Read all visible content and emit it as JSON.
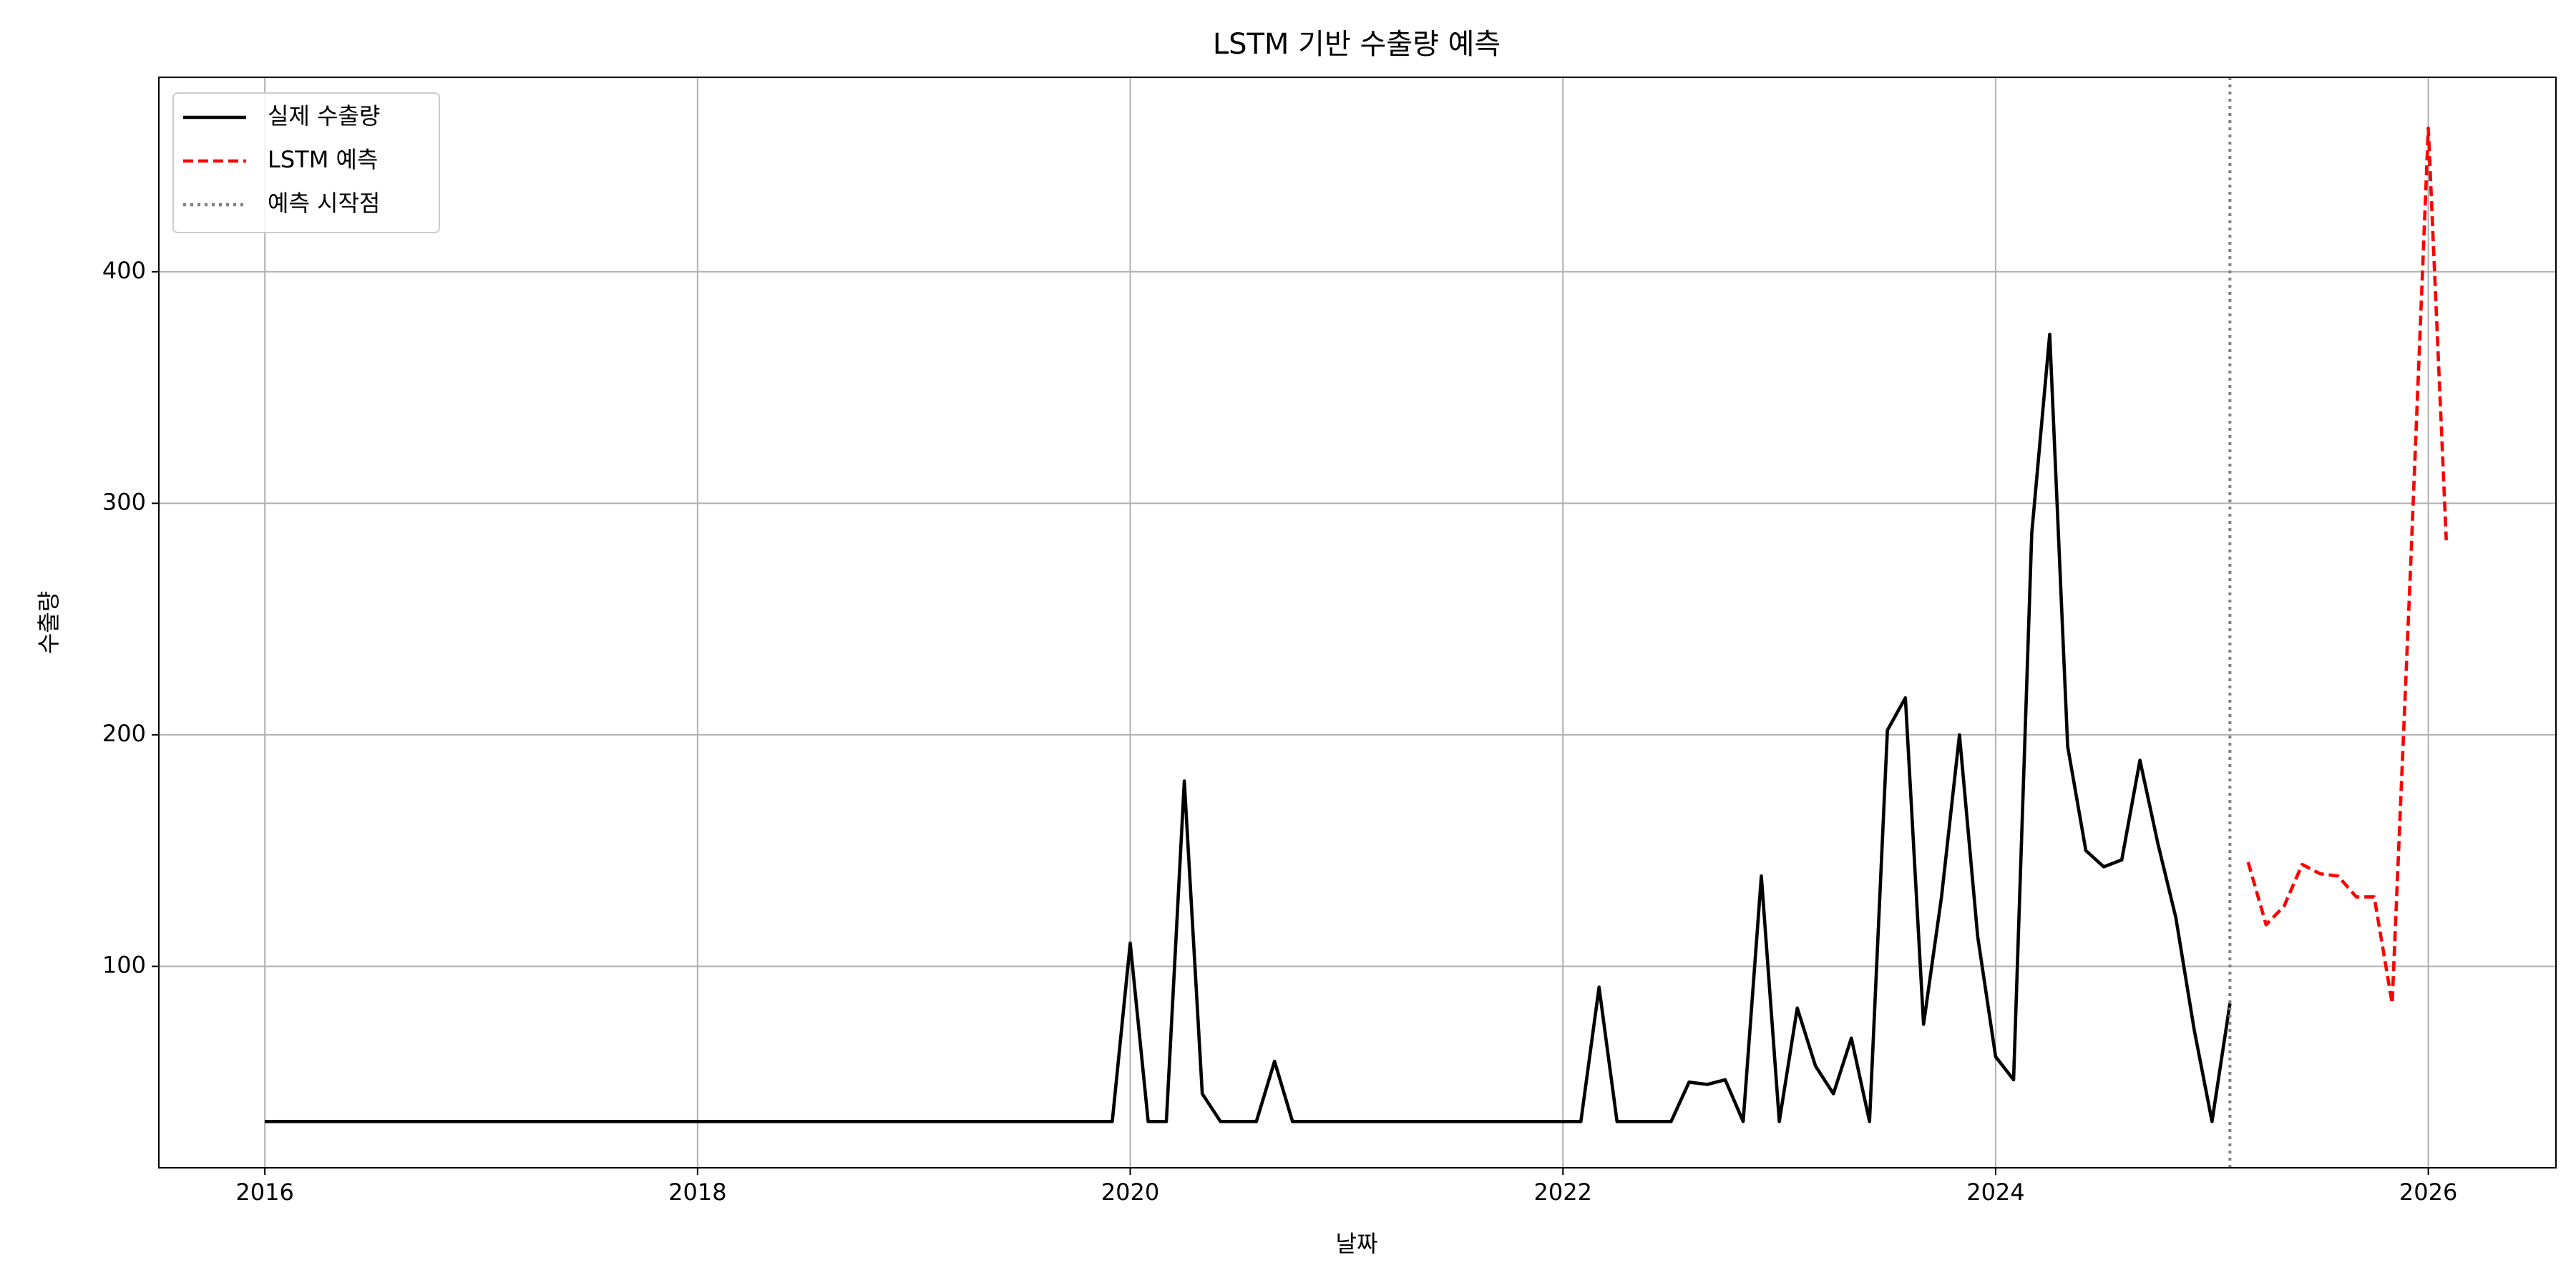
{
  "chart_data": {
    "type": "line",
    "title": "LSTM 기반 수출량 예측",
    "x_label": "날짜",
    "y_label": "수출량",
    "xlim": [
      2015.51,
      2026.59
    ],
    "xticks": [
      2016,
      2018,
      2020,
      2022,
      2024,
      2026
    ],
    "ylim": [
      13,
      484
    ],
    "yticks": [
      100,
      200,
      300,
      400
    ],
    "grid": true,
    "legend": "upper left",
    "series": [
      {
        "name": "실제 수출량",
        "color": "#000000",
        "style": "solid",
        "x": [
          2016.0,
          2019.917,
          2020.0,
          2020.083,
          2020.167,
          2020.25,
          2020.333,
          2020.417,
          2020.583,
          2020.667,
          2020.75,
          2022.083,
          2022.167,
          2022.25,
          2022.5,
          2022.583,
          2022.667,
          2022.75,
          2022.833,
          2022.917,
          2023.0,
          2023.083,
          2023.167,
          2023.25,
          2023.333,
          2023.417,
          2023.5,
          2023.583,
          2023.667,
          2023.75,
          2023.833,
          2023.917,
          2024.0,
          2024.083,
          2024.167,
          2024.25,
          2024.333,
          2024.417,
          2024.5,
          2024.583,
          2024.667,
          2024.75,
          2024.833,
          2024.917,
          2025.0,
          2025.083
        ],
        "values": [
          33,
          33,
          110,
          33,
          33,
          180,
          45,
          33,
          33,
          59,
          33,
          33,
          91,
          33,
          33,
          50,
          49,
          51,
          33,
          139,
          33,
          82,
          57,
          45,
          69,
          33,
          202,
          216,
          75,
          130,
          200,
          113,
          61,
          51,
          287,
          373,
          195,
          150,
          143,
          146,
          189,
          153,
          121,
          73,
          33,
          84
        ]
      },
      {
        "name": "LSTM 예측",
        "color": "#ff0000",
        "style": "dashed",
        "x": [
          2025.167,
          2025.25,
          2025.333,
          2025.417,
          2025.5,
          2025.583,
          2025.667,
          2025.75,
          2025.833,
          2025.917,
          2026.0,
          2026.083
        ],
        "values": [
          145,
          118,
          126,
          144,
          140,
          139,
          130,
          130,
          84,
          270,
          462,
          284
        ]
      }
    ],
    "vlines": [
      {
        "name": "예측 시작점",
        "x": 2025.083,
        "color": "#808080",
        "style": "dotted"
      }
    ]
  }
}
